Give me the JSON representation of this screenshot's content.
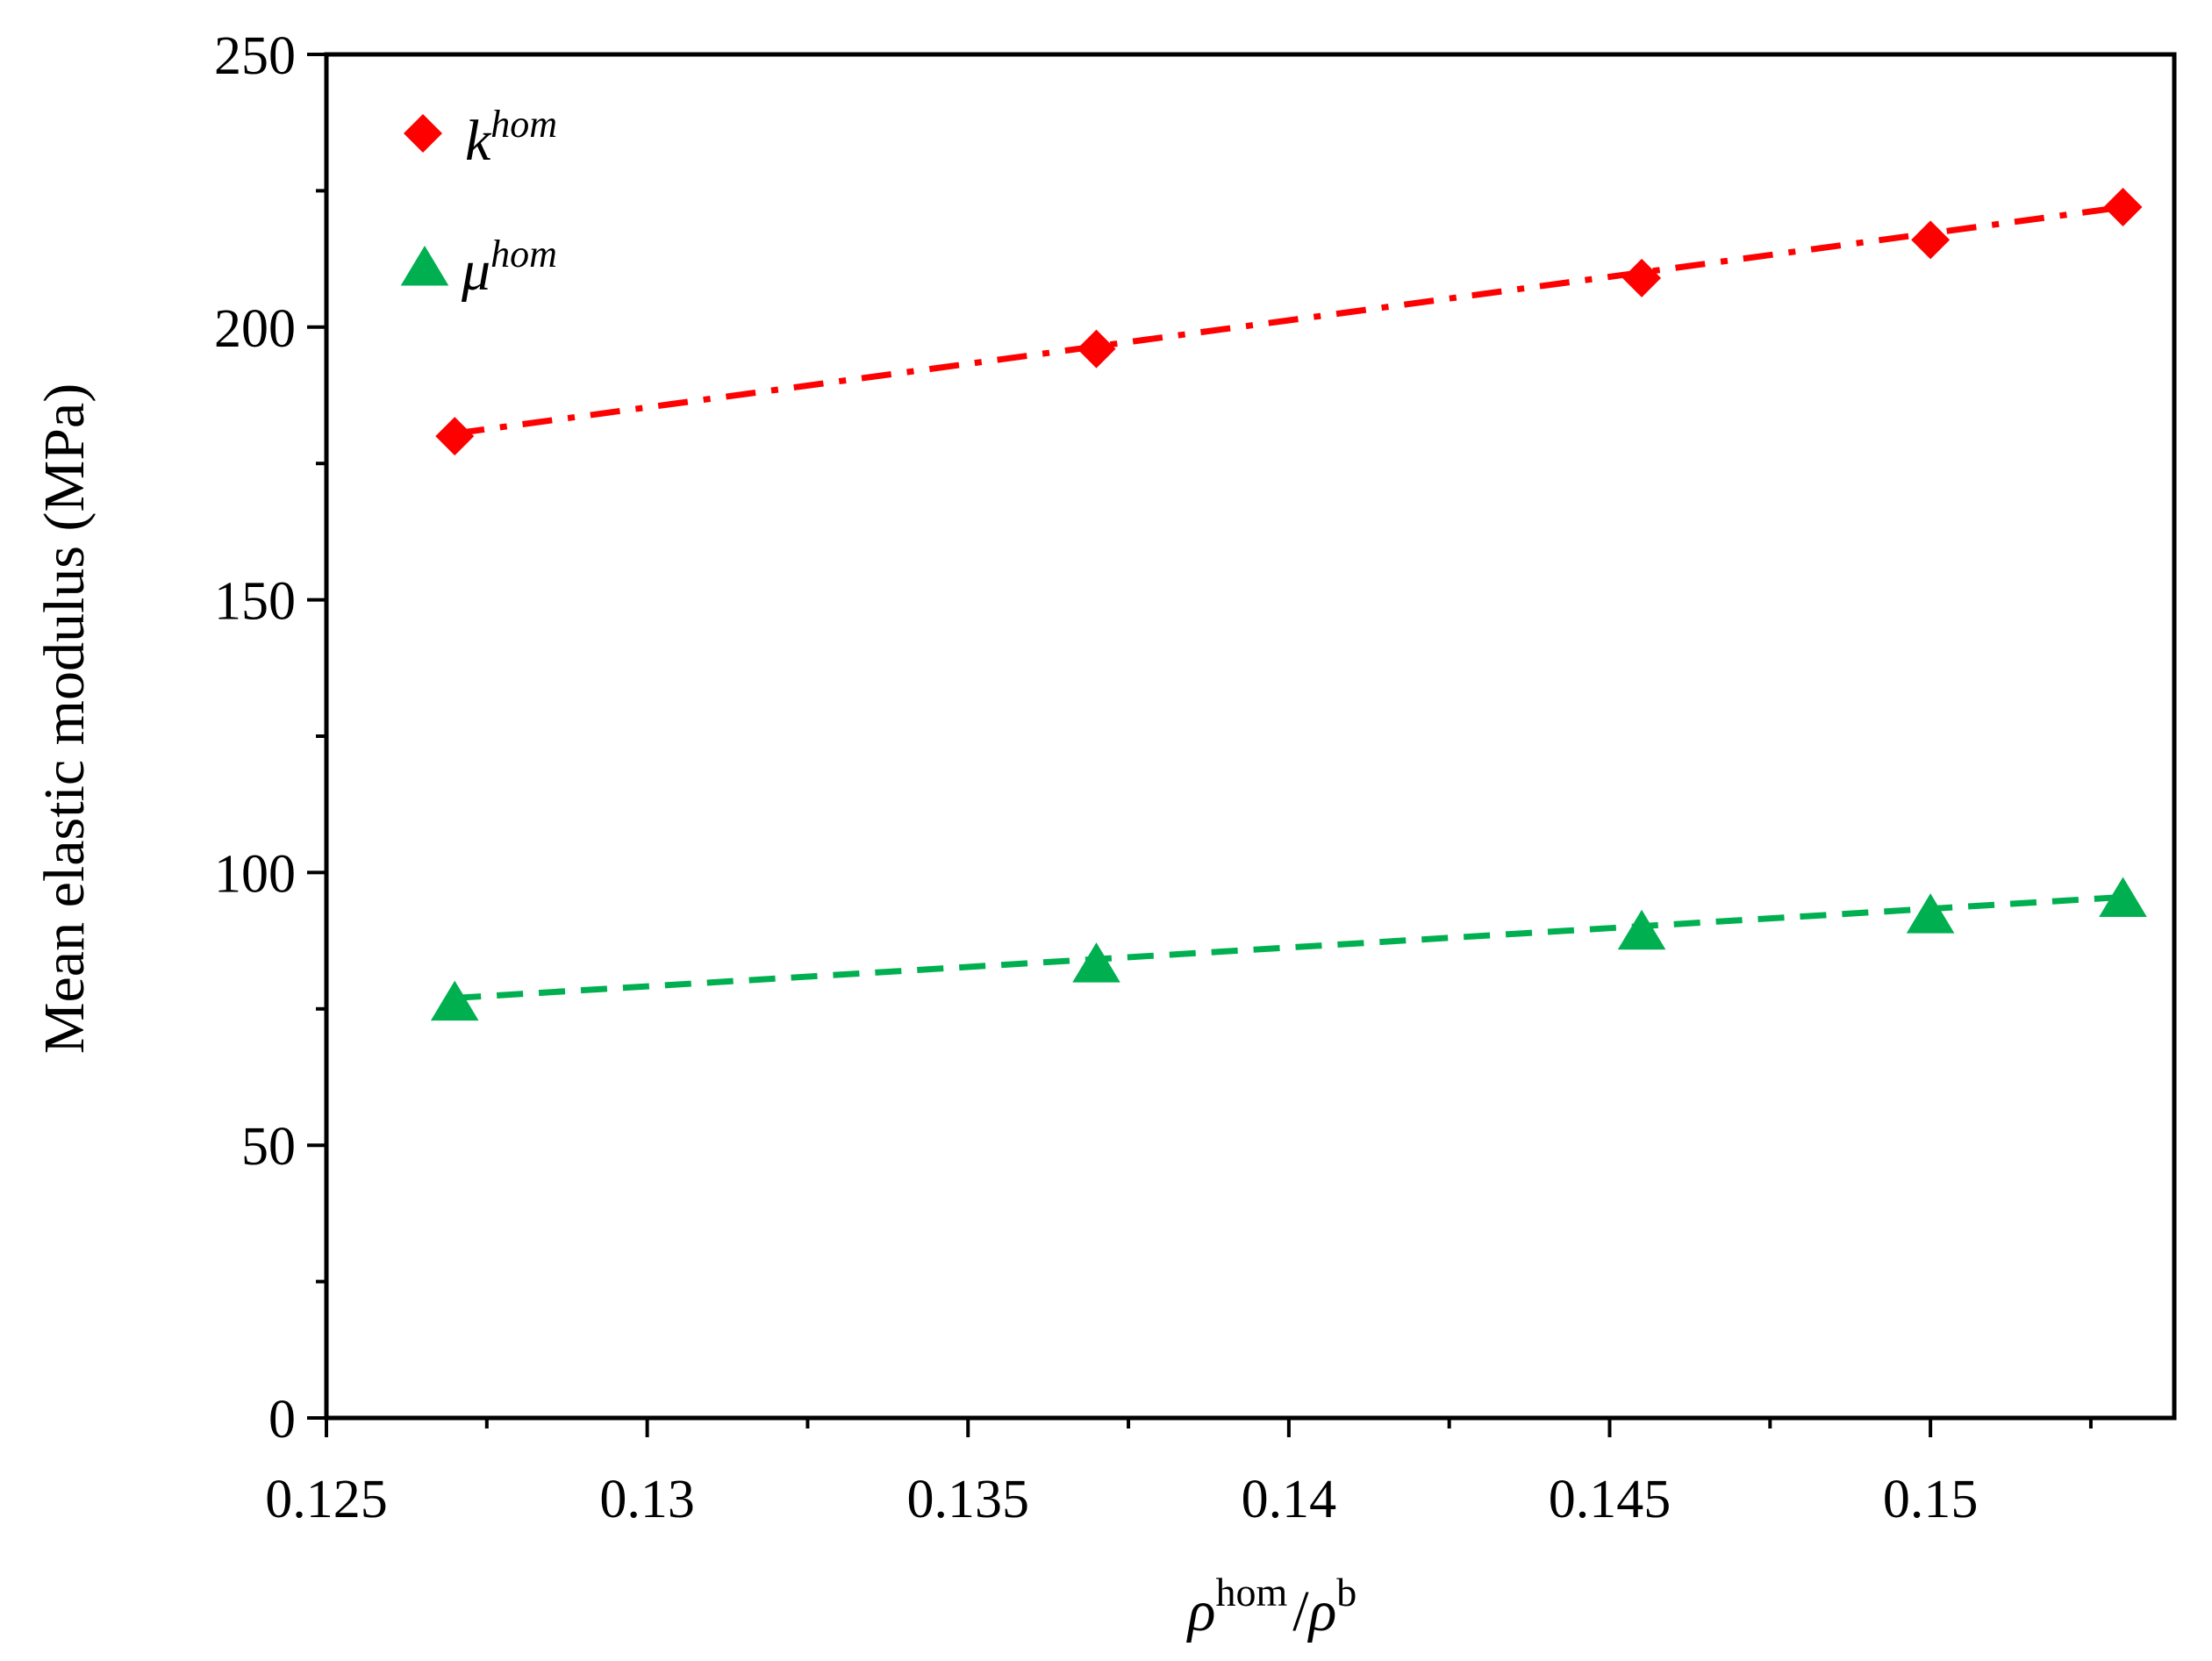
{
  "chart_data": {
    "type": "line",
    "title": "",
    "xlabel": {
      "base": "ρ",
      "sup": "hom",
      "separator": "/",
      "base2": "ρ",
      "sup2": "b"
    },
    "ylabel": "Mean elastic modulus  (MPa)",
    "xlim": [
      0.125,
      0.1538
    ],
    "ylim": [
      0,
      250
    ],
    "x_ticks": [
      0.125,
      0.13,
      0.135,
      0.14,
      0.145,
      0.15
    ],
    "x_tick_labels": [
      "0.125",
      "0.13",
      "0.135",
      "0.14",
      "0.145",
      "0.15"
    ],
    "x_minor_ticks": [
      0.1275,
      0.1325,
      0.1375,
      0.1425,
      0.1475,
      0.1525
    ],
    "y_ticks": [
      0,
      50,
      100,
      150,
      200,
      250
    ],
    "y_tick_labels": [
      "0",
      "50",
      "100",
      "150",
      "200",
      "250"
    ],
    "y_minor_ticks": [
      25,
      75,
      125,
      175,
      225
    ],
    "grid": false,
    "legend_position": "top-left",
    "series": [
      {
        "name": "k",
        "sup": "hom",
        "marker": "diamond",
        "line_style": "dash-dot",
        "color": "#ff0000",
        "x": [
          0.127,
          0.137,
          0.1455,
          0.15,
          0.153
        ],
        "values": [
          180,
          196,
          209,
          216,
          222
        ],
        "fit": {
          "x": [
            0.127,
            0.153
          ],
          "values": [
            180.5,
            222
          ]
        }
      },
      {
        "name": "μ",
        "sup": "hom",
        "marker": "triangle",
        "line_style": "dashed",
        "color": "#00b050",
        "x": [
          0.127,
          0.137,
          0.1455,
          0.15,
          0.153
        ],
        "values": [
          76,
          83,
          89,
          92,
          95
        ],
        "fit": {
          "x": [
            0.127,
            0.153
          ],
          "values": [
            77,
            95.5
          ]
        }
      }
    ]
  }
}
